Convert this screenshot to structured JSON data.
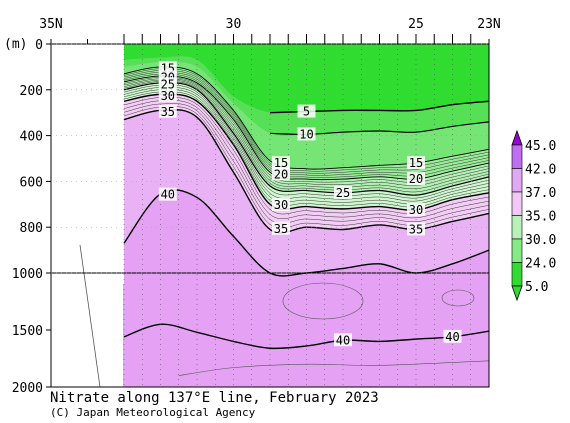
{
  "chart_data": {
    "type": "contour",
    "title": "Nitrate along 137°E line, February 2023",
    "credit": "(C) Japan Meteorological Agency",
    "y_unit_label": "(m)",
    "x_axis": {
      "ticks": [
        {
          "lat": 35,
          "label": "35N"
        },
        {
          "lat": 30,
          "label": "30"
        },
        {
          "lat": 25,
          "label": "25"
        },
        {
          "lat": 23,
          "label": "23N"
        }
      ],
      "range": [
        35,
        23
      ],
      "station_lats": [
        33.0,
        32.5,
        32.0,
        31.5,
        31.0,
        30.5,
        30.0,
        29.5,
        29.0,
        28.5,
        28.0,
        27.5,
        27.0,
        26.5,
        26.0,
        25.5,
        25.0,
        24.5,
        24.0,
        23.5
      ]
    },
    "y_axis_upper": {
      "range": [
        0,
        1000
      ],
      "ticks": [
        0,
        200,
        400,
        600,
        800,
        1000
      ]
    },
    "y_axis_lower": {
      "range": [
        1000,
        2000
      ],
      "ticks": [
        1500,
        2000
      ]
    },
    "colorbar": {
      "labels": [
        "45.0",
        "42.0",
        "37.0",
        "35.0",
        "30.0",
        "24.0",
        "5.0"
      ],
      "colors": [
        "#9d00d6",
        "#c06ef0",
        "#e3a8f3",
        "#f2c8f6",
        "#b9f2b9",
        "#86ea86",
        "#34d934"
      ]
    },
    "isolines": [
      {
        "value": 5,
        "label": "5"
      },
      {
        "value": 10,
        "label": "10"
      },
      {
        "value": 15,
        "label": "15"
      },
      {
        "value": 20,
        "label": "20"
      },
      {
        "value": 25,
        "label": "25"
      },
      {
        "value": 30,
        "label": "30"
      },
      {
        "value": 35,
        "label": "35"
      },
      {
        "value": 40,
        "label": "40"
      }
    ],
    "contour_depths": {
      "x_lats": [
        33.0,
        32.0,
        31.0,
        30.0,
        29.0,
        28.0,
        27.0,
        26.0,
        25.0,
        24.0,
        23.0
      ],
      "c5": [
        null,
        null,
        null,
        null,
        300,
        295,
        290,
        290,
        290,
        265,
        250
      ],
      "c10": [
        null,
        null,
        null,
        null,
        390,
        395,
        385,
        380,
        385,
        360,
        340
      ],
      "c15": [
        130,
        100,
        130,
        290,
        510,
        545,
        540,
        530,
        520,
        490,
        460
      ],
      "c20": [
        165,
        140,
        170,
        330,
        560,
        590,
        590,
        580,
        590,
        555,
        520
      ],
      "c25": [
        200,
        170,
        200,
        390,
        620,
        640,
        650,
        640,
        660,
        620,
        580
      ],
      "c30": [
        250,
        220,
        250,
        440,
        700,
        710,
        720,
        710,
        725,
        680,
        650
      ],
      "c35": [
        330,
        290,
        320,
        560,
        810,
        800,
        810,
        790,
        810,
        775,
        740
      ],
      "c40": [
        870,
        655,
        670,
        840,
        1000,
        1000,
        980,
        960,
        1000,
        960,
        900
      ],
      "c40_deep": [
        1560,
        1450,
        1520,
        1600,
        1660,
        1640,
        1590,
        1600,
        1580,
        1560,
        1510
      ]
    }
  }
}
